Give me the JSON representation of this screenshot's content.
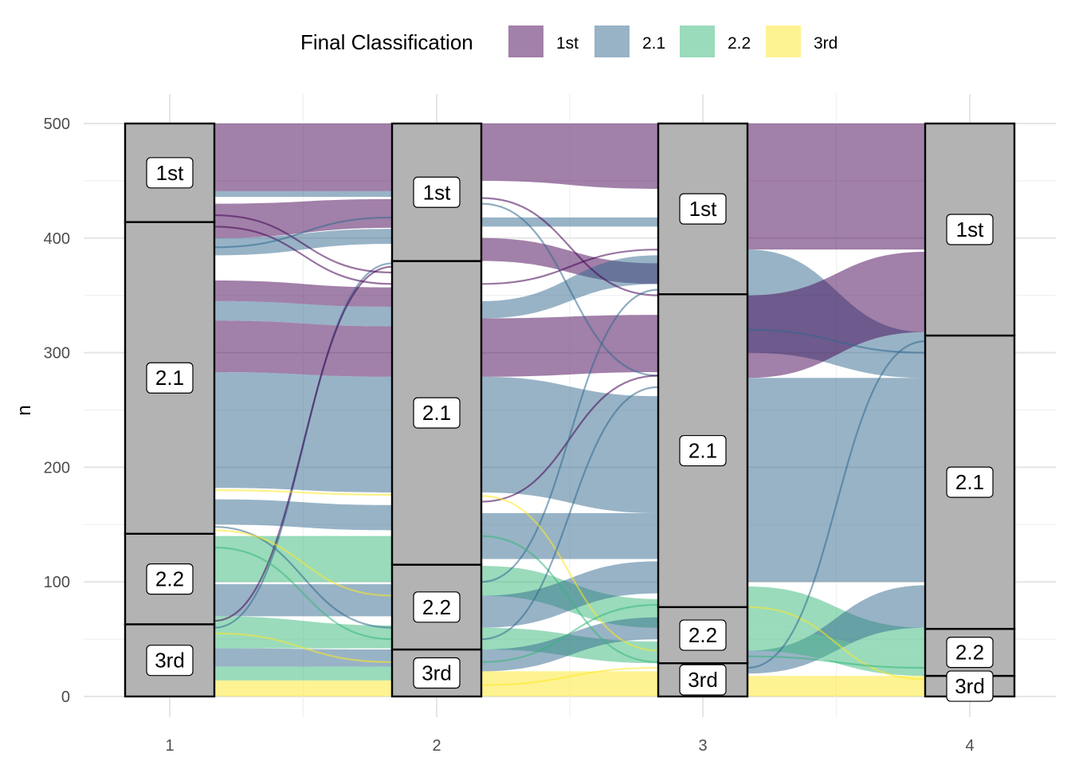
{
  "chart_data": {
    "type": "alluvial",
    "title": "",
    "xlabel": "",
    "ylabel": "n",
    "ylim": [
      0,
      500
    ],
    "x_ticks": [
      "1",
      "2",
      "3",
      "4"
    ],
    "y_ticks": [
      "0",
      "100",
      "200",
      "300",
      "400",
      "500"
    ],
    "grid": true,
    "legend": {
      "title": "Final Classification",
      "position": "top",
      "entries": [
        {
          "label": "1st",
          "color": "#440154"
        },
        {
          "label": "2.1",
          "color": "#31688e"
        },
        {
          "label": "2.2",
          "color": "#35b779"
        },
        {
          "label": "3rd",
          "color": "#fde725"
        }
      ]
    },
    "axes": [
      {
        "x": "1",
        "strata": [
          {
            "label": "3rd",
            "value": 63
          },
          {
            "label": "2.2",
            "value": 79
          },
          {
            "label": "2.1",
            "value": 272
          },
          {
            "label": "1st",
            "value": 86
          }
        ]
      },
      {
        "x": "2",
        "strata": [
          {
            "label": "3rd",
            "value": 41
          },
          {
            "label": "2.2",
            "value": 74
          },
          {
            "label": "2.1",
            "value": 265
          },
          {
            "label": "1st",
            "value": 120
          }
        ]
      },
      {
        "x": "3",
        "strata": [
          {
            "label": "3rd",
            "value": 29
          },
          {
            "label": "2.2",
            "value": 49
          },
          {
            "label": "2.1",
            "value": 273
          },
          {
            "label": "1st",
            "value": 149
          }
        ]
      },
      {
        "x": "4",
        "strata": [
          {
            "label": "3rd",
            "value": 18
          },
          {
            "label": "2.2",
            "value": 41
          },
          {
            "label": "2.1",
            "value": 256
          },
          {
            "label": "1st",
            "value": 185
          }
        ]
      }
    ],
    "flows": [
      {
        "from_x": "1",
        "to_x": "2",
        "class": "1st",
        "y0": [
          441,
          500
        ],
        "y1": [
          441,
          500
        ]
      },
      {
        "from_x": "1",
        "to_x": "2",
        "class": "2.1",
        "y0": [
          436,
          441
        ],
        "y1": [
          436,
          441
        ]
      },
      {
        "from_x": "1",
        "to_x": "2",
        "class": "1st",
        "y0": [
          400,
          430
        ],
        "y1": [
          409,
          434
        ]
      },
      {
        "from_x": "1",
        "to_x": "2",
        "class": "2.1",
        "y0": [
          385,
          400
        ],
        "y1": [
          395,
          408
        ]
      },
      {
        "from_x": "1",
        "to_x": "2",
        "class": "1st",
        "y0": [
          345,
          363
        ],
        "y1": [
          340,
          357
        ]
      },
      {
        "from_x": "1",
        "to_x": "2",
        "class": "2.1",
        "y0": [
          328,
          345
        ],
        "y1": [
          323,
          340
        ]
      },
      {
        "from_x": "1",
        "to_x": "2",
        "class": "1st",
        "y0": [
          283,
          328
        ],
        "y1": [
          279,
          323
        ]
      },
      {
        "from_x": "1",
        "to_x": "2",
        "class": "2.1",
        "y0": [
          182,
          283
        ],
        "y1": [
          178,
          279
        ]
      },
      {
        "from_x": "1",
        "to_x": "2",
        "class": "2.1",
        "y0": [
          150,
          172
        ],
        "y1": [
          145,
          167
        ]
      },
      {
        "from_x": "1",
        "to_x": "2",
        "class": "2.2",
        "y0": [
          100,
          140
        ],
        "y1": [
          100,
          140
        ]
      },
      {
        "from_x": "1",
        "to_x": "2",
        "class": "2.1",
        "y0": [
          70,
          98
        ],
        "y1": [
          70,
          98
        ]
      },
      {
        "from_x": "1",
        "to_x": "2",
        "class": "2.2",
        "y0": [
          42,
          70
        ],
        "y1": [
          42,
          62
        ]
      },
      {
        "from_x": "1",
        "to_x": "2",
        "class": "2.1",
        "y0": [
          26,
          42
        ],
        "y1": [
          26,
          41
        ]
      },
      {
        "from_x": "1",
        "to_x": "2",
        "class": "2.2",
        "y0": [
          14,
          26
        ],
        "y1": [
          14,
          26
        ]
      },
      {
        "from_x": "1",
        "to_x": "2",
        "class": "3rd",
        "y0": [
          0,
          14
        ],
        "y1": [
          0,
          14
        ]
      },
      {
        "from_x": "2",
        "to_x": "3",
        "class": "1st",
        "y0": [
          450,
          500
        ],
        "y1": [
          443,
          500
        ]
      },
      {
        "from_x": "2",
        "to_x": "3",
        "class": "2.1",
        "y0": [
          410,
          418
        ],
        "y1": [
          410,
          418
        ]
      },
      {
        "from_x": "2",
        "to_x": "3",
        "class": "1st",
        "y0": [
          380,
          400
        ],
        "y1": [
          360,
          378
        ]
      },
      {
        "from_x": "2",
        "to_x": "3",
        "class": "2.1",
        "y0": [
          330,
          345
        ],
        "y1": [
          360,
          385
        ]
      },
      {
        "from_x": "2",
        "to_x": "3",
        "class": "1st",
        "y0": [
          279,
          330
        ],
        "y1": [
          283,
          333
        ]
      },
      {
        "from_x": "2",
        "to_x": "3",
        "class": "2.1",
        "y0": [
          178,
          279
        ],
        "y1": [
          160,
          262
        ]
      },
      {
        "from_x": "2",
        "to_x": "3",
        "class": "2.1",
        "y0": [
          120,
          160
        ],
        "y1": [
          120,
          160
        ]
      },
      {
        "from_x": "2",
        "to_x": "3",
        "class": "2.2",
        "y0": [
          88,
          114
        ],
        "y1": [
          60,
          85
        ]
      },
      {
        "from_x": "2",
        "to_x": "3",
        "class": "2.1",
        "y0": [
          60,
          88
        ],
        "y1": [
          90,
          118
        ]
      },
      {
        "from_x": "2",
        "to_x": "3",
        "class": "2.2",
        "y0": [
          41,
          60
        ],
        "y1": [
          29,
          48
        ]
      },
      {
        "from_x": "2",
        "to_x": "3",
        "class": "2.1",
        "y0": [
          22,
          41
        ],
        "y1": [
          50,
          69
        ]
      },
      {
        "from_x": "2",
        "to_x": "3",
        "class": "3rd",
        "y0": [
          0,
          22
        ],
        "y1": [
          0,
          22
        ]
      },
      {
        "from_x": "3",
        "to_x": "4",
        "class": "1st",
        "y0": [
          390,
          500
        ],
        "y1": [
          390,
          500
        ]
      },
      {
        "from_x": "3",
        "to_x": "4",
        "class": "2.1",
        "y0": [
          300,
          390
        ],
        "y1": [
          278,
          318
        ]
      },
      {
        "from_x": "3",
        "to_x": "4",
        "class": "1st",
        "y0": [
          278,
          350
        ],
        "y1": [
          318,
          388
        ]
      },
      {
        "from_x": "3",
        "to_x": "4",
        "class": "2.1",
        "y0": [
          100,
          278
        ],
        "y1": [
          100,
          278
        ]
      },
      {
        "from_x": "3",
        "to_x": "4",
        "class": "2.2",
        "y0": [
          60,
          96
        ],
        "y1": [
          40,
          60
        ]
      },
      {
        "from_x": "3",
        "to_x": "4",
        "class": "2.1",
        "y0": [
          20,
          40
        ],
        "y1": [
          60,
          97
        ]
      },
      {
        "from_x": "3",
        "to_x": "4",
        "class": "2.2",
        "y0": [
          40,
          60
        ],
        "y1": [
          18,
          40
        ]
      },
      {
        "from_x": "3",
        "to_x": "4",
        "class": "3rd",
        "y0": [
          0,
          18
        ],
        "y1": [
          0,
          18
        ]
      }
    ],
    "threads": [
      {
        "from_x": "1",
        "to_x": "2",
        "class": "2.1",
        "y0": 60,
        "y1": 378
      },
      {
        "from_x": "1",
        "to_x": "2",
        "class": "1st",
        "y0": 66,
        "y1": 375
      },
      {
        "from_x": "1",
        "to_x": "2",
        "class": "2.1",
        "y0": 148,
        "y1": 60
      },
      {
        "from_x": "1",
        "to_x": "2",
        "class": "3rd",
        "y0": 180,
        "y1": 176
      },
      {
        "from_x": "1",
        "to_x": "2",
        "class": "3rd",
        "y0": 145,
        "y1": 88
      },
      {
        "from_x": "1",
        "to_x": "2",
        "class": "1st",
        "y0": 420,
        "y1": 370
      },
      {
        "from_x": "1",
        "to_x": "2",
        "class": "1st",
        "y0": 410,
        "y1": 360
      },
      {
        "from_x": "1",
        "to_x": "2",
        "class": "2.1",
        "y0": 392,
        "y1": 418
      },
      {
        "from_x": "1",
        "to_x": "2",
        "class": "2.2",
        "y0": 130,
        "y1": 50
      },
      {
        "from_x": "1",
        "to_x": "2",
        "class": "3rd",
        "y0": 55,
        "y1": 30
      },
      {
        "from_x": "2",
        "to_x": "3",
        "class": "1st",
        "y0": 435,
        "y1": 350
      },
      {
        "from_x": "2",
        "to_x": "3",
        "class": "2.1",
        "y0": 430,
        "y1": 280
      },
      {
        "from_x": "2",
        "to_x": "3",
        "class": "1st",
        "y0": 170,
        "y1": 280
      },
      {
        "from_x": "2",
        "to_x": "3",
        "class": "2.1",
        "y0": 100,
        "y1": 355
      },
      {
        "from_x": "2",
        "to_x": "3",
        "class": "2.2",
        "y0": 140,
        "y1": 30
      },
      {
        "from_x": "2",
        "to_x": "3",
        "class": "3rd",
        "y0": 175,
        "y1": 40
      },
      {
        "from_x": "2",
        "to_x": "3",
        "class": "2.1",
        "y0": 50,
        "y1": 270
      },
      {
        "from_x": "2",
        "to_x": "3",
        "class": "1st",
        "y0": 360,
        "y1": 390
      },
      {
        "from_x": "2",
        "to_x": "3",
        "class": "2.2",
        "y0": 30,
        "y1": 80
      },
      {
        "from_x": "2",
        "to_x": "3",
        "class": "3rd",
        "y0": 10,
        "y1": 25
      },
      {
        "from_x": "3",
        "to_x": "4",
        "class": "3rd",
        "y0": 78,
        "y1": 15
      },
      {
        "from_x": "3",
        "to_x": "4",
        "class": "2.1",
        "y0": 25,
        "y1": 310
      },
      {
        "from_x": "3",
        "to_x": "4",
        "class": "2.2",
        "y0": 35,
        "y1": 25
      },
      {
        "from_x": "3",
        "to_x": "4",
        "class": "2.1",
        "y0": 320,
        "y1": 300
      }
    ]
  }
}
